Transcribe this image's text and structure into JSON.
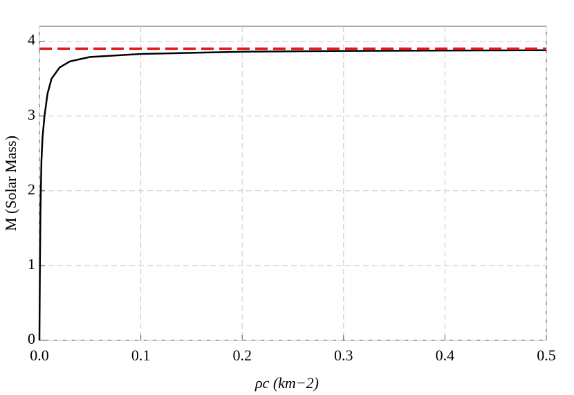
{
  "chart_data": {
    "type": "line",
    "xlabel": "ρc (km−2)",
    "ylabel": "M (Solar Mass)",
    "xlim": [
      0,
      0.5
    ],
    "ylim": [
      0,
      4.2
    ],
    "xticks": [
      {
        "value": 0,
        "label": "0.0"
      },
      0.1,
      0.2,
      0.3,
      0.4,
      0.5
    ],
    "yticks": [
      0,
      1,
      2,
      3,
      4
    ],
    "grid": true,
    "series": [
      {
        "color": "#000000",
        "dash": false,
        "x": [
          0,
          0.0005,
          0.001,
          0.002,
          0.003,
          0.005,
          0.008,
          0.012,
          0.02,
          0.03,
          0.05,
          0.1,
          0.2,
          0.3,
          0.4,
          0.5
        ],
        "values": [
          0,
          1.0,
          1.7,
          2.4,
          2.7,
          3.0,
          3.3,
          3.5,
          3.65,
          3.73,
          3.79,
          3.83,
          3.86,
          3.87,
          3.875,
          3.88
        ]
      },
      {
        "color": "#e31a1c",
        "dash": true,
        "x": [
          0,
          0.5
        ],
        "values": [
          3.9,
          3.9
        ]
      }
    ]
  }
}
